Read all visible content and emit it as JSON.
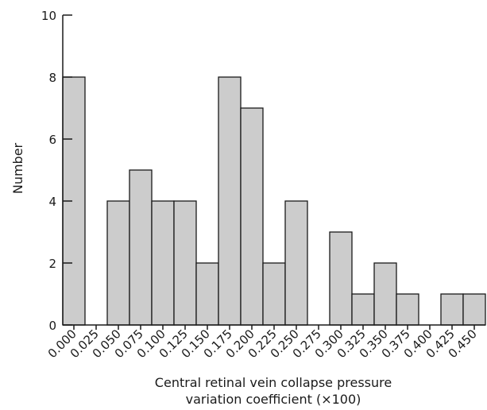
{
  "chart_data": {
    "type": "bar",
    "title": "",
    "ylabel": "Number",
    "xlabel_lines": [
      "Central retinal vein collapse pressure",
      "variation coefficient (×100)"
    ],
    "categories": [
      "0.000",
      "0.025",
      "0.050",
      "0.075",
      "0.100",
      "0.125",
      "0.150",
      "0.175",
      "0.200",
      "0.225",
      "0.250",
      "0.275",
      "0.300",
      "0.325",
      "0.350",
      "0.375",
      "0.400",
      "0.425",
      "0.450"
    ],
    "values": [
      8,
      0,
      4,
      5,
      4,
      4,
      2,
      8,
      7,
      2,
      4,
      0,
      3,
      1,
      2,
      1,
      0,
      1,
      1
    ],
    "ylim": [
      0,
      10
    ],
    "yticks": [
      0,
      2,
      4,
      6,
      8,
      10
    ],
    "grid": false,
    "bar_color": "#cccccc",
    "bar_edge_color": "#1a1a1a"
  }
}
